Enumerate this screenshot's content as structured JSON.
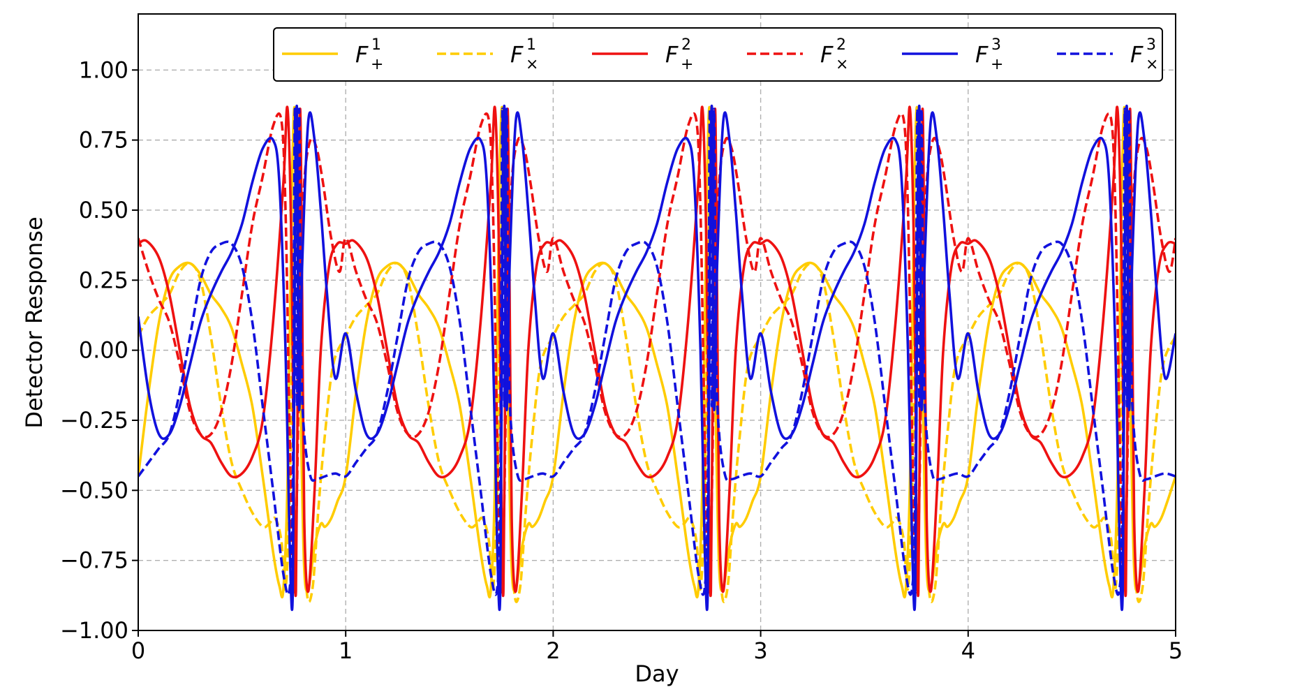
{
  "chart_data": {
    "type": "line",
    "title": "",
    "xlabel": "Day",
    "ylabel": "Detector Response",
    "xlim": [
      0,
      5
    ],
    "ylim": [
      -1.0,
      1.2
    ],
    "grid": true,
    "legend_position": "top-right",
    "x_ticks": [
      0,
      1,
      2,
      3,
      4,
      5
    ],
    "x_tick_labels": [
      "0",
      "1",
      "2",
      "3",
      "4",
      "5"
    ],
    "y_ticks": [
      -1.0,
      -0.75,
      -0.5,
      -0.25,
      0.0,
      0.25,
      0.5,
      0.75,
      1.0
    ],
    "y_tick_labels": [
      "−1.00",
      "−0.75",
      "−0.50",
      "−0.25",
      "0.00",
      "0.25",
      "0.50",
      "0.75",
      "1.00"
    ],
    "period_days": 1,
    "series": [
      {
        "name": "F",
        "sup": "1",
        "sub": "+",
        "color": "#ffcc00",
        "dash": "solid",
        "x": [
          0,
          0.05,
          0.1,
          0.15,
          0.2,
          0.25,
          0.3,
          0.35,
          0.4,
          0.45,
          0.5,
          0.55,
          0.6,
          0.65,
          0.68,
          0.7,
          0.72,
          0.74,
          0.755,
          0.77,
          0.785,
          0.8,
          0.82,
          0.85,
          0.88,
          0.9,
          0.93,
          0.96,
          1.0
        ],
        "values": [
          -0.45,
          -0.15,
          0.1,
          0.25,
          0.3,
          0.31,
          0.27,
          0.2,
          0.15,
          0.08,
          -0.05,
          -0.2,
          -0.45,
          -0.72,
          -0.84,
          -0.85,
          -0.45,
          0.55,
          0.86,
          0.3,
          -0.3,
          -0.78,
          -0.85,
          -0.7,
          -0.62,
          -0.63,
          -0.6,
          -0.54,
          -0.45
        ]
      },
      {
        "name": "F",
        "sup": "1",
        "sub": "×",
        "color": "#ffcc00",
        "dash": "dashed",
        "x": [
          0,
          0.05,
          0.1,
          0.15,
          0.2,
          0.25,
          0.3,
          0.35,
          0.4,
          0.45,
          0.5,
          0.55,
          0.6,
          0.63,
          0.66,
          0.69,
          0.71,
          0.73,
          0.75,
          0.765,
          0.775,
          0.79,
          0.81,
          0.84,
          0.87,
          0.9,
          0.94,
          1.0
        ],
        "values": [
          0.05,
          0.12,
          0.16,
          0.2,
          0.28,
          0.31,
          0.25,
          0.05,
          -0.2,
          -0.4,
          -0.5,
          -0.58,
          -0.63,
          -0.62,
          -0.6,
          -0.68,
          -0.85,
          -0.5,
          0.4,
          0.86,
          0.35,
          -0.3,
          -0.84,
          -0.85,
          -0.55,
          -0.3,
          -0.05,
          0.05
        ]
      },
      {
        "name": "F",
        "sup": "2",
        "sub": "+",
        "color": "#ee1111",
        "dash": "solid",
        "x": [
          0,
          0.04,
          0.1,
          0.15,
          0.2,
          0.25,
          0.3,
          0.35,
          0.4,
          0.45,
          0.5,
          0.55,
          0.6,
          0.65,
          0.7,
          0.72,
          0.74,
          0.75,
          0.76,
          0.77,
          0.78,
          0.79,
          0.8,
          0.82,
          0.85,
          0.88,
          0.92,
          0.96,
          1.0
        ],
        "values": [
          0.38,
          0.39,
          0.33,
          0.2,
          0.0,
          -0.2,
          -0.3,
          -0.33,
          -0.4,
          -0.45,
          -0.44,
          -0.38,
          -0.25,
          0.1,
          0.6,
          0.86,
          0.3,
          -0.5,
          -0.86,
          0.0,
          0.86,
          0.2,
          -0.6,
          -0.86,
          -0.5,
          0.0,
          0.3,
          0.38,
          0.38
        ]
      },
      {
        "name": "F",
        "sup": "2",
        "sub": "×",
        "color": "#ee1111",
        "dash": "dashed",
        "x": [
          0,
          0.05,
          0.1,
          0.15,
          0.2,
          0.25,
          0.3,
          0.35,
          0.4,
          0.45,
          0.5,
          0.55,
          0.6,
          0.65,
          0.69,
          0.71,
          0.73,
          0.75,
          0.765,
          0.78,
          0.8,
          0.83,
          0.86,
          0.89,
          0.93,
          0.97,
          1.0
        ],
        "values": [
          0.4,
          0.28,
          0.18,
          0.1,
          -0.05,
          -0.22,
          -0.3,
          -0.3,
          -0.22,
          -0.05,
          0.2,
          0.45,
          0.62,
          0.8,
          0.82,
          0.5,
          -0.3,
          -0.86,
          -0.5,
          0.2,
          0.6,
          0.75,
          0.72,
          0.6,
          0.4,
          0.28,
          0.4
        ]
      },
      {
        "name": "F",
        "sup": "3",
        "sub": "+",
        "color": "#1111dd",
        "dash": "solid",
        "x": [
          0,
          0.05,
          0.1,
          0.15,
          0.2,
          0.25,
          0.3,
          0.35,
          0.4,
          0.45,
          0.5,
          0.55,
          0.6,
          0.65,
          0.68,
          0.71,
          0.73,
          0.745,
          0.755,
          0.765,
          0.775,
          0.79,
          0.82,
          0.85,
          0.88,
          0.91,
          0.95,
          1.0
        ],
        "values": [
          0.12,
          -0.15,
          -0.3,
          -0.3,
          -0.2,
          -0.05,
          0.1,
          0.2,
          0.28,
          0.35,
          0.45,
          0.6,
          0.72,
          0.75,
          0.6,
          0.0,
          -0.7,
          -0.86,
          0.3,
          0.86,
          -0.2,
          0.3,
          0.82,
          0.75,
          0.5,
          0.2,
          -0.1,
          0.06
        ]
      },
      {
        "name": "F",
        "sup": "3",
        "sub": "×",
        "color": "#1111dd",
        "dash": "dashed",
        "x": [
          0,
          0.05,
          0.1,
          0.15,
          0.2,
          0.25,
          0.3,
          0.35,
          0.4,
          0.45,
          0.5,
          0.55,
          0.6,
          0.65,
          0.7,
          0.73,
          0.745,
          0.755,
          0.765,
          0.775,
          0.785,
          0.8,
          0.83,
          0.86,
          0.9,
          0.95,
          1.0
        ],
        "values": [
          -0.45,
          -0.4,
          -0.35,
          -0.3,
          -0.15,
          0.05,
          0.25,
          0.35,
          0.38,
          0.38,
          0.3,
          0.1,
          -0.2,
          -0.5,
          -0.8,
          -0.85,
          -0.5,
          0.86,
          -0.2,
          0.86,
          0.0,
          -0.3,
          -0.45,
          -0.46,
          -0.45,
          -0.44,
          -0.45
        ]
      }
    ]
  }
}
